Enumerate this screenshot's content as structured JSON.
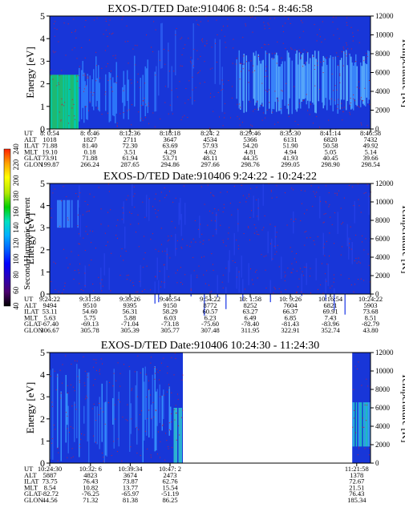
{
  "chart_data": [
    {
      "type": "heatmap",
      "title": "EXOS-D/TED",
      "date_label": "Date:910406",
      "time_range": "8: 0:54 - 8:46:58",
      "ylabel": "Energy [eV]",
      "ylim": [
        0,
        5
      ],
      "yticks": [
        "0",
        "1",
        "2",
        "3",
        "4",
        "5"
      ],
      "y2label": "Temperature [K]",
      "y2lim": [
        0,
        12000
      ],
      "y2ticks": [
        "0",
        "2000",
        "4000",
        "6000",
        "8000",
        "10000",
        "12000"
      ],
      "data_coverage": [
        0,
        1
      ],
      "ephemeris": {
        "rows": [
          "UT",
          "ALT",
          "ILAT",
          "MLT",
          "GLAT",
          "GLON"
        ],
        "columns": [
          [
            "8: 0:54",
            "1018",
            "71.88",
            "19.10",
            "73.91",
            "199.87"
          ],
          [
            "8: 6:46",
            "1827",
            "81.40",
            "0.18",
            "71.88",
            "266.24"
          ],
          [
            "8:12:36",
            "2711",
            "72.30",
            "3.51",
            "61.94",
            "287.65"
          ],
          [
            "8:18:18",
            "3647",
            "63.69",
            "4.29",
            "53.71",
            "294.86"
          ],
          [
            "8:24: 2",
            "4534",
            "57.93",
            "4.62",
            "48.11",
            "297.66"
          ],
          [
            "8:29:46",
            "5366",
            "54.20",
            "4.81",
            "44.35",
            "298.76"
          ],
          [
            "8:35:30",
            "6131",
            "51.90",
            "4.94",
            "41.93",
            "299.05"
          ],
          [
            "8:41:14",
            "6820",
            "50.58",
            "5.05",
            "40.45",
            "298.90"
          ],
          [
            "8:46:58",
            "7432",
            "49.92",
            "5.14",
            "39.66",
            "298.54"
          ]
        ]
      }
    },
    {
      "type": "heatmap",
      "title": "EXOS-D/TED",
      "date_label": "Date:910406",
      "time_range": "9:24:22 - 10:24:22",
      "ylabel": "Energy [eV]",
      "ylim": [
        0,
        5
      ],
      "yticks": [
        "0",
        "1",
        "2",
        "3",
        "4",
        "5"
      ],
      "y2label": "Temperature [K]",
      "y2lim": [
        0,
        12000
      ],
      "y2ticks": [
        "0",
        "2000",
        "4000",
        "6000",
        "8000",
        "10000",
        "12000"
      ],
      "data_coverage": [
        0,
        1
      ],
      "ephemeris": {
        "rows": [
          "UT",
          "ALT",
          "ILAT",
          "MLT",
          "GLAT",
          "GLON"
        ],
        "columns": [
          [
            "9:24:22",
            "9494",
            "53.11",
            "5.63",
            "-67.40",
            "306.67"
          ],
          [
            "9:31:58",
            "9510",
            "54.60",
            "5.75",
            "-69.13",
            "305.78"
          ],
          [
            "9:39:26",
            "9395",
            "56.31",
            "5.88",
            "-71.04",
            "305.39"
          ],
          [
            "9:46:54",
            "9150",
            "58.29",
            "6.03",
            "-73.18",
            "305.77"
          ],
          [
            "9:54:22",
            "8772",
            "60.57",
            "6.23",
            "-75.60",
            "307.48"
          ],
          [
            "10: 1:58",
            "8252",
            "63.27",
            "6.49",
            "-78.40",
            "311.95"
          ],
          [
            "10: 9:26",
            "7604",
            "66.37",
            "6.85",
            "-81.43",
            "322.91"
          ],
          [
            "10:16:54",
            "6821",
            "69.91",
            "7.43",
            "-83.96",
            "352.74"
          ],
          [
            "10:24:22",
            "5903",
            "73.68",
            "8.51",
            "-82.79",
            "43.80"
          ]
        ]
      }
    },
    {
      "type": "heatmap",
      "title": "EXOS-D/TED",
      "date_label": "Date:910406",
      "time_range": "10:24:30 - 11:24:30",
      "ylabel": "Energy [eV]",
      "ylim": [
        0,
        5
      ],
      "yticks": [
        "0",
        "1",
        "2",
        "3",
        "4",
        "5"
      ],
      "y2label": "Temperature [K]",
      "y2lim": [
        0,
        12000
      ],
      "y2ticks": [
        "0",
        "2000",
        "4000",
        "6000",
        "8000",
        "10000",
        "12000"
      ],
      "data_coverage": [
        0,
        0.415
      ],
      "data_coverage_end": [
        0.943,
        1
      ],
      "ephemeris": {
        "rows": [
          "UT",
          "ALT",
          "ILAT",
          "MLT",
          "GLAT",
          "GLON"
        ],
        "columns": [
          [
            "10:24:30",
            "5887",
            "73.75",
            "8.54",
            "-82.72",
            "44.56"
          ],
          [
            "10:32: 6",
            "4823",
            "76.43",
            "10.82",
            "-76.25",
            "71.32"
          ],
          [
            "10:39:34",
            "3674",
            "73.87",
            "13.77",
            "-65.97",
            "81.38"
          ],
          [
            "10:47: 2",
            "2473",
            "62.76",
            "15.54",
            "-51.19",
            "86.25"
          ],
          [
            "11:21:58",
            "1378",
            "72.67",
            "21.51",
            "76.43",
            "185.34"
          ]
        ],
        "column_fractions": [
          0,
          0.127,
          0.251,
          0.375,
          0.957
        ]
      }
    }
  ],
  "colorbar": {
    "label": "Second Harmonic Current",
    "range": [
      40,
      240
    ],
    "ticks": [
      "40",
      "60",
      "80",
      "100",
      "120",
      "140",
      "160",
      "180",
      "200",
      "220",
      "240"
    ],
    "colors": [
      "#000000",
      "#4b006e",
      "#2a00b8",
      "#0000ff",
      "#0060ff",
      "#00b0ff",
      "#00e0c0",
      "#00d000",
      "#b0e800",
      "#ffff00",
      "#ffa000",
      "#ff2000"
    ]
  }
}
